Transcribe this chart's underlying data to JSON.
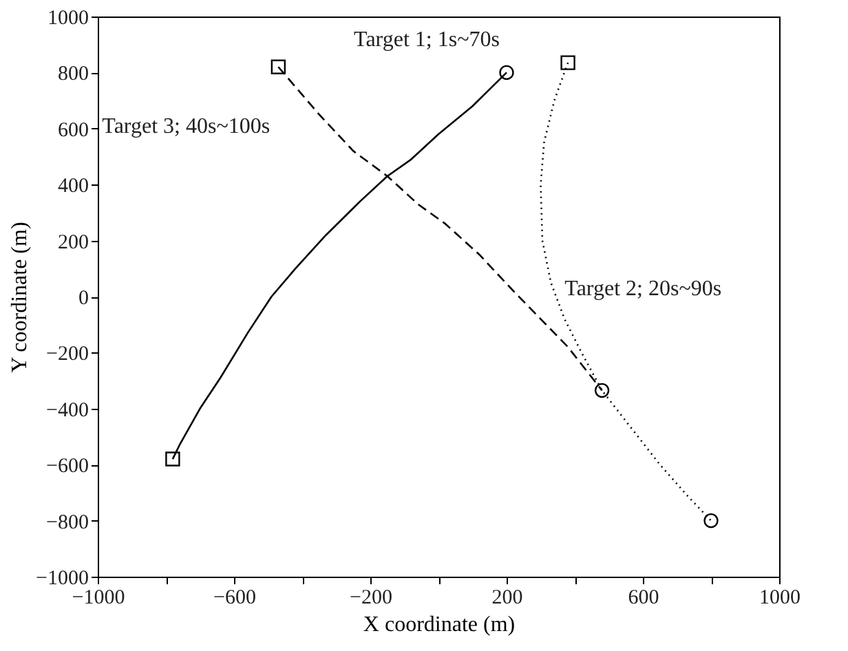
{
  "chart_data": {
    "type": "line",
    "xlabel": "X coordinate (m)",
    "ylabel": "Y coordinate (m)",
    "xlim": [
      -1000,
      1000
    ],
    "ylim": [
      -1000,
      1000
    ],
    "xticks": [
      -1000,
      {
        "value": -800,
        "label": null
      },
      -600,
      {
        "value": -400,
        "label": null
      },
      -200,
      {
        "value": 0,
        "label": null
      },
      200,
      {
        "value": 400,
        "label": null
      },
      600,
      {
        "value": 800,
        "label": null
      },
      1000
    ],
    "yticks": [
      -1000,
      -800,
      -600,
      -400,
      -200,
      0,
      200,
      400,
      600,
      800,
      1000
    ],
    "grid": false,
    "marker": "none",
    "series": [
      {
        "name": "Target 1; 1s~70s",
        "color": "#000000",
        "line_style": "solid",
        "x": [
          -780,
          -760,
          -700,
          -640,
          -560,
          -490,
          -420,
          -330,
          -230,
          -150,
          -80,
          0,
          100,
          200
        ],
        "values": [
          -580,
          -530,
          -400,
          -290,
          -130,
          0,
          100,
          220,
          340,
          430,
          490,
          580,
          680,
          800
        ]
      },
      {
        "name": "Target 2; 20s~90s",
        "color": "#000000",
        "line_style": "dotted",
        "x": [
          380,
          340,
          310,
          300,
          305,
          330,
          370,
          420,
          480,
          560,
          650,
          730,
          800
        ],
        "values": [
          835,
          700,
          550,
          400,
          200,
          50,
          -80,
          -200,
          -335,
          -460,
          -600,
          -710,
          -800
        ]
      },
      {
        "name": "Target 3; 40s~100s",
        "color": "#000000",
        "line_style": "dashed",
        "x": [
          -470,
          -350,
          -250,
          -150,
          -60,
          20,
          120,
          220,
          300,
          380,
          480
        ],
        "values": [
          820,
          650,
          520,
          430,
          330,
          260,
          150,
          20,
          -80,
          -180,
          -335
        ]
      },
      {
        "type": "scatter",
        "marker": "square",
        "color": "#000000",
        "x": [
          -780,
          380,
          -470
        ],
        "values": [
          -580,
          835,
          820
        ]
      },
      {
        "type": "scatter",
        "marker": "circle",
        "color": "#000000",
        "x": [
          200,
          800,
          480
        ],
        "values": [
          800,
          -800,
          -335
        ]
      }
    ]
  }
}
